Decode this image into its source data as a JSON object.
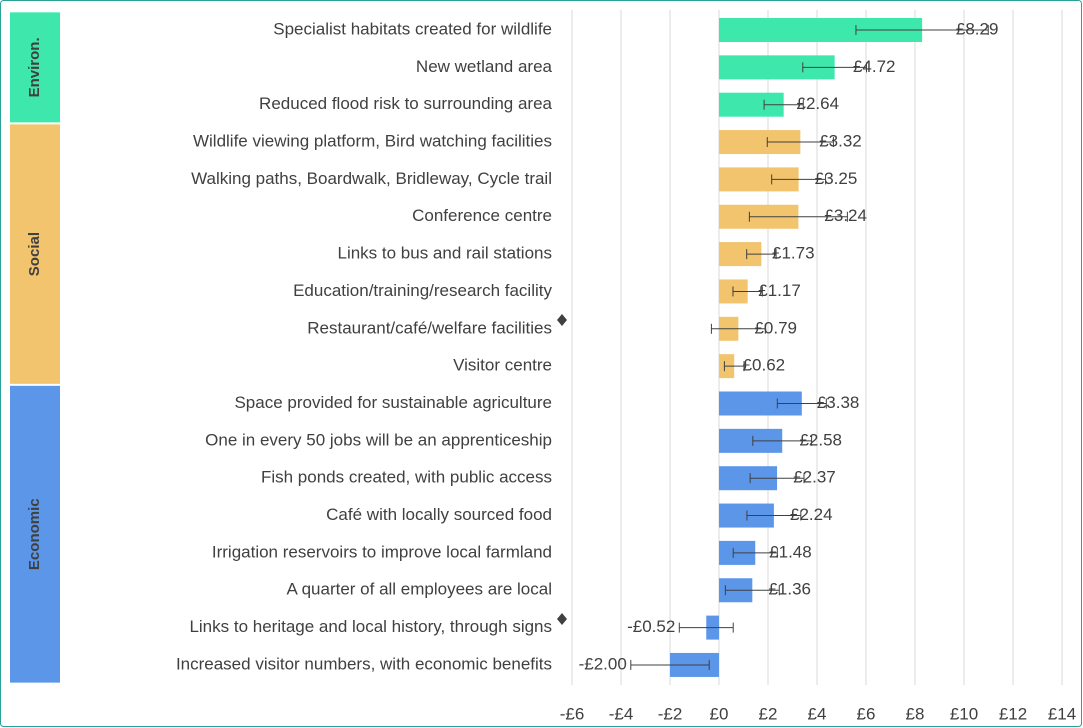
{
  "chart_data": {
    "type": "bar",
    "orientation": "horizontal",
    "series": [
      {
        "name": "Environ.",
        "color": "#3ee8ad",
        "categories": [
          "Specialist habitats created for wildlife",
          "New wetland area",
          "Reduced flood risk to surrounding area"
        ],
        "values": [
          8.29,
          4.72,
          2.64
        ],
        "errors": [
          2.7,
          1.3,
          0.8
        ],
        "value_labels": [
          "£8.29",
          "£4.72",
          "£2.64"
        ]
      },
      {
        "name": "Social",
        "color": "#f2c46d",
        "categories": [
          "Wildlife viewing platform, Bird watching facilities",
          "Walking paths, Boardwalk, Bridleway, Cycle trail",
          "Conference centre",
          "Links to bus and rail stations",
          "Education/training/research facility",
          "Restaurant/café/welfare facilities",
          "Visitor centre"
        ],
        "values": [
          3.32,
          3.25,
          3.24,
          1.73,
          1.17,
          0.79,
          0.62
        ],
        "errors": [
          1.35,
          1.1,
          2.0,
          0.6,
          0.6,
          1.1,
          0.4
        ],
        "value_labels": [
          "£3.32",
          "£3.25",
          "£3.24",
          "£1.73",
          "£1.17",
          "£0.79",
          "£0.62"
        ]
      },
      {
        "name": "Economic",
        "color": "#5b96e8",
        "categories": [
          "Space provided for sustainable agriculture",
          "One in every 50 jobs will be an apprenticeship",
          "Fish ponds created, with public access",
          "Café with locally sourced food",
          "Irrigation reservoirs to improve local farmland",
          "A quarter of all employees are local",
          "Links to heritage and local history, through signs",
          "Increased visitor numbers, with economic benefits"
        ],
        "values": [
          3.38,
          2.58,
          2.37,
          2.24,
          1.48,
          1.36,
          -0.52,
          -2.0
        ],
        "errors": [
          1.0,
          1.2,
          1.1,
          1.1,
          0.9,
          1.1,
          1.1,
          1.6
        ],
        "value_labels": [
          "£3.38",
          "£2.58",
          "£2.37",
          "£2.24",
          "£1.48",
          "£1.36",
          "-£0.52",
          "-£2.00"
        ]
      }
    ],
    "xlim": [
      -6,
      14
    ],
    "xticks": [
      {
        "value": -6,
        "label": "-£6"
      },
      {
        "value": -4,
        "label": "-£4"
      },
      {
        "value": -2,
        "label": "-£2"
      },
      {
        "value": 0,
        "label": "£0"
      },
      {
        "value": 2,
        "label": "£2"
      },
      {
        "value": 4,
        "label": "£4"
      },
      {
        "value": 6,
        "label": "£6"
      },
      {
        "value": 8,
        "label": "£8"
      },
      {
        "value": 10,
        "label": "£10"
      },
      {
        "value": 12,
        "label": "£12"
      },
      {
        "value": 14,
        "label": "£14"
      }
    ],
    "grid": true
  }
}
